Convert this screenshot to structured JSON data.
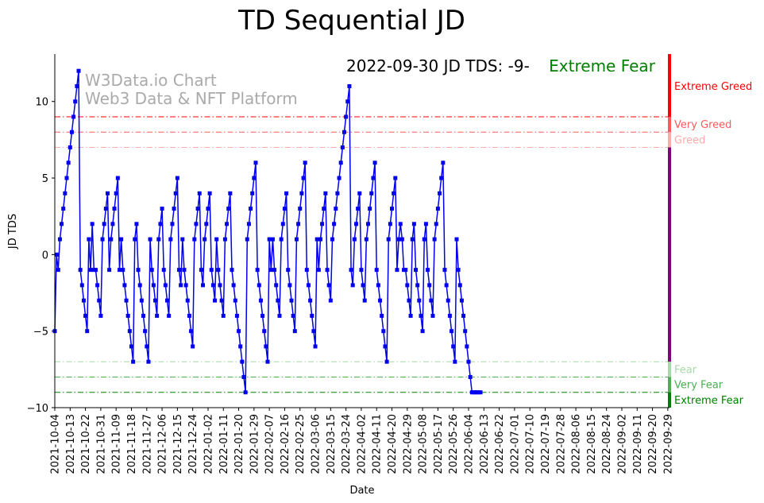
{
  "chart_data": {
    "type": "line",
    "title": "TD Sequential JD",
    "xlabel": "Date",
    "ylabel": "JD TDS",
    "ylim": [
      -10,
      13.1
    ],
    "yticks": [
      -10,
      -5,
      0,
      5,
      10
    ],
    "start_date": "2021-10-04",
    "end_date": "2022-09-30",
    "xtick_labels": [
      "2021-10-04",
      "2021-10-13",
      "2021-10-22",
      "2021-10-31",
      "2021-11-09",
      "2021-11-18",
      "2021-11-27",
      "2021-12-06",
      "2021-12-15",
      "2021-12-24",
      "2022-01-02",
      "2022-01-11",
      "2022-01-20",
      "2022-01-29",
      "2022-02-07",
      "2022-02-16",
      "2022-02-25",
      "2022-03-06",
      "2022-03-15",
      "2022-03-24",
      "2022-04-02",
      "2022-04-11",
      "2022-04-20",
      "2022-04-29",
      "2022-05-08",
      "2022-05-17",
      "2022-05-26",
      "2022-06-04",
      "2022-06-13",
      "2022-06-22",
      "2022-07-01",
      "2022-07-10",
      "2022-07-19",
      "2022-07-28",
      "2022-08-06",
      "2022-08-15",
      "2022-08-24",
      "2022-09-02",
      "2022-09-11",
      "2022-09-20",
      "2022-09-29"
    ],
    "series": [
      {
        "name": "JD TDS",
        "color": "#0000ee",
        "values": [
          -5,
          0,
          -1,
          1,
          2,
          3,
          4,
          5,
          6,
          7,
          8,
          9,
          10,
          11,
          12,
          -1,
          -2,
          -3,
          -4,
          -5,
          1,
          -1,
          2,
          -1,
          -1,
          -2,
          -3,
          -4,
          1,
          2,
          3,
          4,
          -1,
          1,
          2,
          3,
          4,
          5,
          -1,
          1,
          -1,
          -2,
          -3,
          -4,
          -5,
          -6,
          -7,
          1,
          2,
          -1,
          -2,
          -3,
          -4,
          -5,
          -6,
          -7,
          1,
          -1,
          -2,
          -3,
          -4,
          1,
          2,
          3,
          -1,
          -2,
          -3,
          -4,
          1,
          2,
          3,
          4,
          5,
          -1,
          -2,
          1,
          -1,
          -2,
          -3,
          -4,
          -5,
          -6,
          1,
          2,
          3,
          4,
          -1,
          -2,
          1,
          2,
          3,
          4,
          -1,
          -2,
          -3,
          1,
          -1,
          -2,
          -3,
          -4,
          1,
          2,
          3,
          4,
          -1,
          -2,
          -3,
          -4,
          -5,
          -6,
          -7,
          -8,
          -9,
          1,
          2,
          3,
          4,
          5,
          6,
          -1,
          -2,
          -3,
          -4,
          -5,
          -6,
          -7,
          1,
          -1,
          1,
          -1,
          -2,
          -3,
          -4,
          1,
          2,
          3,
          4,
          -1,
          -2,
          -3,
          -4,
          -5,
          1,
          2,
          3,
          4,
          5,
          6,
          -1,
          -2,
          -3,
          -4,
          -5,
          -6,
          1,
          -1,
          1,
          2,
          3,
          4,
          -1,
          -2,
          -3,
          1,
          2,
          3,
          4,
          5,
          6,
          7,
          8,
          9,
          10,
          11,
          -1,
          -2,
          1,
          2,
          3,
          4,
          -1,
          -2,
          -3,
          1,
          2,
          3,
          4,
          5,
          6,
          -1,
          -2,
          -3,
          -4,
          -5,
          -6,
          -7,
          1,
          2,
          3,
          4,
          5,
          -1,
          1,
          2,
          1,
          -1,
          -1,
          -2,
          -3,
          -4,
          1,
          2,
          -1,
          -2,
          -3,
          -4,
          -5,
          1,
          2,
          -1,
          -2,
          -3,
          -4,
          1,
          2,
          3,
          4,
          5,
          6,
          -1,
          -2,
          -3,
          -4,
          -5,
          -6,
          -7,
          1,
          -1,
          -2,
          -3,
          -4,
          -5,
          -6,
          -7,
          -8,
          -9,
          -9,
          -9,
          -9,
          -9,
          -9
        ]
      }
    ],
    "thresholds": [
      {
        "value": 9,
        "color": "#ff0000"
      },
      {
        "value": 8,
        "color": "#ff5a5a"
      },
      {
        "value": 7,
        "color": "#ffaaaa"
      },
      {
        "value": -7,
        "color": "#a8d8a8"
      },
      {
        "value": -8,
        "color": "#4caf50"
      },
      {
        "value": -9,
        "color": "#008000"
      }
    ],
    "sentiment_bar": [
      {
        "from": 13.1,
        "to": 9,
        "color": "#ff0000"
      },
      {
        "from": 9,
        "to": 8,
        "color": "#ff5a5a"
      },
      {
        "from": 8,
        "to": 7,
        "color": "#ffaaaa"
      },
      {
        "from": 7,
        "to": -7,
        "color": "#800080"
      },
      {
        "from": -7,
        "to": -8,
        "color": "#a8d8a8"
      },
      {
        "from": -8,
        "to": -9,
        "color": "#4caf50"
      },
      {
        "from": -9,
        "to": -10,
        "color": "#008000"
      }
    ],
    "side_labels": [
      {
        "text": "Extreme Greed",
        "value": 11,
        "color": "#ff0000"
      },
      {
        "text": "Very Greed",
        "value": 8.5,
        "color": "#ff5a5a"
      },
      {
        "text": "Greed",
        "value": 7.5,
        "color": "#ffaaaa"
      },
      {
        "text": "Fear",
        "value": -7.5,
        "color": "#a8d8a8"
      },
      {
        "text": "Very Fear",
        "value": -8.5,
        "color": "#4caf50"
      },
      {
        "text": "Extreme Fear",
        "value": -9.5,
        "color": "#008000"
      }
    ],
    "annotation": {
      "text": "2022-09-30 JD TDS: -9-",
      "status": "Extreme Fear",
      "status_color": "#008000"
    },
    "watermark": [
      "W3Data.io Chart",
      "Web3 Data & NFT Platform"
    ]
  }
}
